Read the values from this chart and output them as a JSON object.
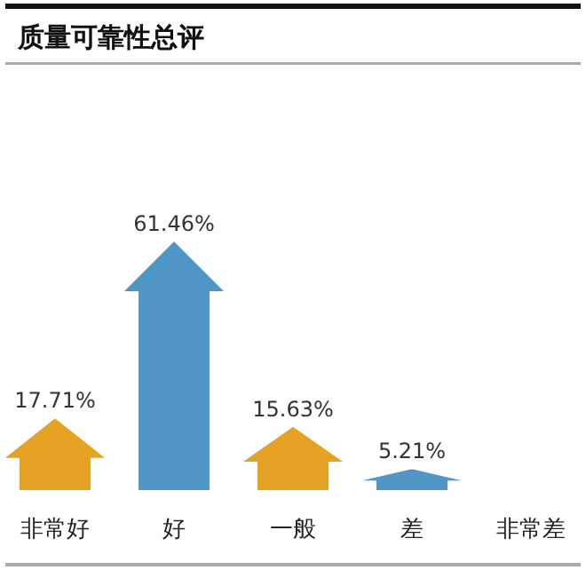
{
  "chart_data": {
    "type": "bar",
    "title": "质量可靠性总评",
    "categories": [
      "非常好",
      "好",
      "一般",
      "差",
      "非常差"
    ],
    "values": [
      17.71,
      61.46,
      15.63,
      5.21,
      0
    ],
    "value_labels": [
      "17.71%",
      "61.46%",
      "15.63%",
      "5.21%",
      null
    ],
    "colors": [
      "#e5a223",
      "#5097c8",
      "#e5a223",
      "#5097c8",
      "#e5a223"
    ]
  }
}
